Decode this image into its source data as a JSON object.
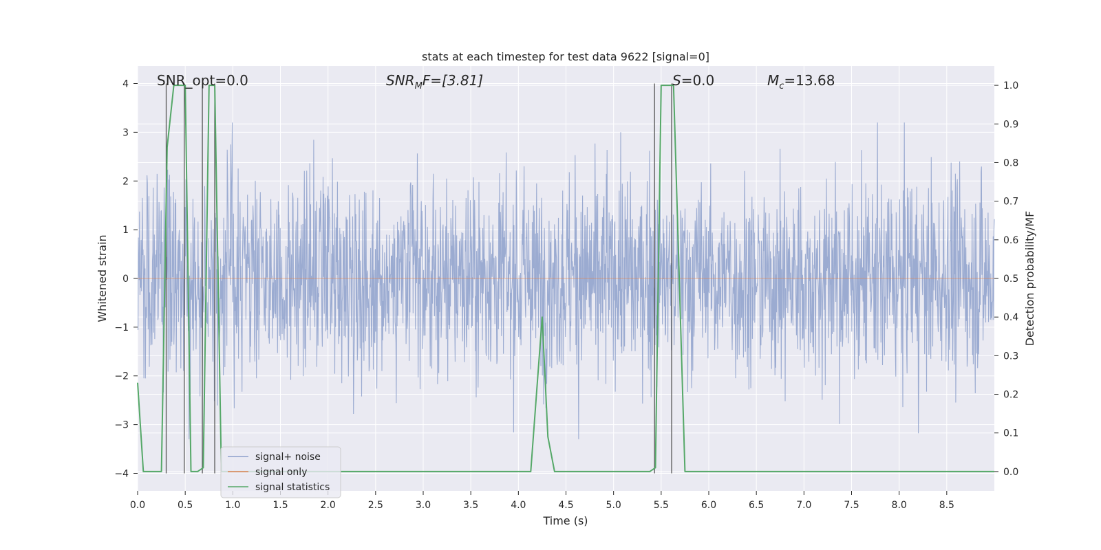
{
  "chart_data": {
    "type": "line",
    "title": "stats at each timestep for test data 9622 [signal=0]",
    "xlabel": "Time (s)",
    "ylabel_left": "Whitened strain",
    "ylabel_right": "Detection probability/MF",
    "xlim": [
      0.0,
      9.0
    ],
    "ylim_left": [
      -4.36,
      4.36
    ],
    "ylim_right": [
      -0.05,
      1.05
    ],
    "xticks": [
      "0.0",
      "0.5",
      "1.0",
      "1.5",
      "2.0",
      "2.5",
      "3.0",
      "3.5",
      "4.0",
      "4.5",
      "5.0",
      "5.5",
      "6.0",
      "6.5",
      "7.0",
      "7.5",
      "8.0",
      "8.5"
    ],
    "yticks_left": [
      "4",
      "3",
      "2",
      "1",
      "0",
      "−1",
      "−2",
      "−3",
      "−4"
    ],
    "yticks_right": [
      "1.0",
      "0.9",
      "0.8",
      "0.7",
      "0.6",
      "0.5",
      "0.4",
      "0.3",
      "0.2",
      "0.1",
      "0.0"
    ],
    "annotations": {
      "snr_opt": "SNR_opt=0.0",
      "snr_mf_var": "SNR",
      "snr_mf_sub": "M",
      "snr_mf_rest": "F=[3.81]",
      "s_var": "S",
      "s_rest": "=0.0",
      "mc_var": "M",
      "mc_sub": "c",
      "mc_rest": "=13.68"
    },
    "legend": [
      {
        "label": "signal+ noise",
        "color": "#8da0cb"
      },
      {
        "label": "signal only",
        "color": "#dd8452"
      },
      {
        "label": "signal statistics",
        "color": "#55a868"
      }
    ],
    "series": [
      {
        "name": "signal+ noise",
        "axis": "left",
        "color": "#8da0cb",
        "description_values": "whitened noisy strain, roughly within [-3.3, 3.2]"
      },
      {
        "name": "signal only",
        "axis": "left",
        "color": "#dd8452",
        "x": [
          0.0,
          9.0
        ],
        "values": [
          0.0,
          0.0
        ]
      },
      {
        "name": "signal statistics",
        "axis": "right",
        "color": "#55a868",
        "x": [
          0.0,
          0.06,
          0.25,
          0.31,
          0.38,
          0.5,
          0.56,
          0.63,
          0.69,
          0.75,
          0.81,
          0.88,
          3.94,
          4.0,
          4.13,
          4.25,
          4.31,
          4.38,
          5.38,
          5.44,
          5.5,
          5.63,
          5.75,
          9.0
        ],
        "values": [
          0.23,
          0.0,
          0.0,
          0.84,
          1.0,
          1.0,
          0.0,
          0.0,
          0.01,
          1.0,
          1.0,
          0.0,
          0.0,
          0.0,
          0.0,
          0.4,
          0.09,
          0.0,
          0.0,
          0.01,
          1.0,
          1.0,
          0.0,
          0.0
        ]
      }
    ],
    "vertical_markers_x": [
      0.3,
      0.49,
      0.68,
      0.81,
      5.43,
      5.61
    ]
  }
}
